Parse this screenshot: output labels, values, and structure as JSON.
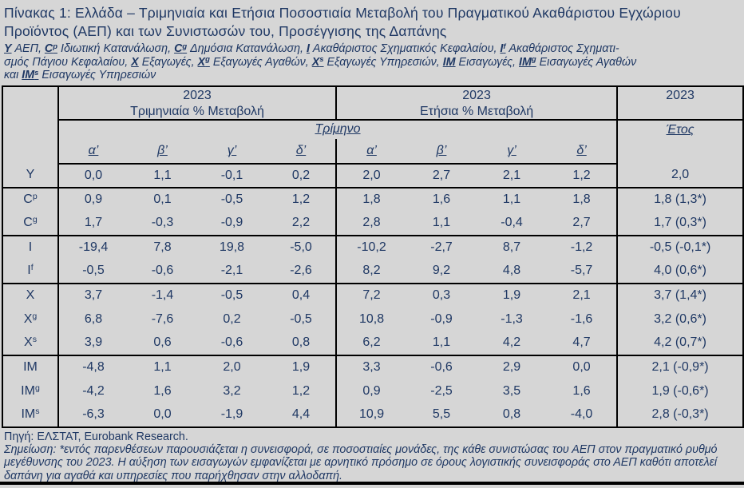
{
  "colors": {
    "text": "#1F3864",
    "background": "#D6D6D6",
    "border": "#000000"
  },
  "title_lines": [
    "Πίνακας 1: Ελλάδα – Τριμηνιαία και Ετήσια Ποσοστιαία Μεταβολή του Πραγματικού Ακαθάριστου Εγχώριου",
    "Προϊόντος (ΑΕΠ) και των Συνιστωσών του, Προσέγγισης της Δαπάνης"
  ],
  "legend": {
    "lines": [
      [
        {
          "sym": "Y",
          "sup": "",
          "post": " ΑΕΠ, "
        },
        {
          "sym": "C",
          "sup": "p",
          "post": " Ιδιωτική Κατανάλωση, "
        },
        {
          "sym": "C",
          "sup": "g",
          "post": " Δημόσια Κατανάλωση, "
        },
        {
          "sym": "I",
          "sup": "",
          "post": " Ακαθάριστος Σχηματικός Κεφαλαίου, "
        },
        {
          "sym": "I",
          "sup": "f",
          "post": " Ακαθάριστος Σχηματι-"
        }
      ],
      [
        {
          "pre": "σμός Πάγιου Κεφαλαίου, ",
          "sym": "X",
          "sup": "",
          "post": " Εξαγωγές, "
        },
        {
          "sym": "X",
          "sup": "g",
          "post": " Εξαγωγές Αγαθών, "
        },
        {
          "sym": "X",
          "sup": "s",
          "post": " Εξαγωγές Υπηρεσιών, "
        },
        {
          "sym": "IM",
          "sup": "",
          "post": " Εισαγωγές, "
        },
        {
          "sym": "IM",
          "sup": "g",
          "post": " Εισαγωγές Αγαθών"
        }
      ],
      [
        {
          "pre": "και ",
          "sym": "IM",
          "sup": "s",
          "post": " Εισαγωγές Υπηρεσιών"
        }
      ]
    ]
  },
  "table": {
    "year_headers": [
      "2023",
      "2023",
      "2023"
    ],
    "quarterly_title": "Τριμηνιαία % Μεταβολή",
    "annual_title": "Ετήσια % Μεταβολή",
    "quarter_span_label": "Τρίμηνο",
    "year_span_label": "Έτος",
    "quarter_cols": [
      "α’",
      "β’",
      "γ’",
      "δ’"
    ],
    "rows": [
      {
        "label": "Y",
        "sup": "",
        "group_start": false,
        "quarterly": [
          "0,0",
          "1,1",
          "-0,1",
          "0,2"
        ],
        "annual": [
          "2,0",
          "2,7",
          "2,1",
          "1,2"
        ],
        "year": "2,0"
      },
      {
        "label": "C",
        "sup": "p",
        "group_start": true,
        "quarterly": [
          "0,9",
          "0,1",
          "-0,5",
          "1,2"
        ],
        "annual": [
          "1,8",
          "1,6",
          "1,1",
          "1,8"
        ],
        "year": "1,8 (1,3*)"
      },
      {
        "label": "C",
        "sup": "g",
        "group_start": false,
        "quarterly": [
          "1,7",
          "-0,3",
          "-0,9",
          "2,2"
        ],
        "annual": [
          "2,8",
          "1,1",
          "-0,4",
          "2,7"
        ],
        "year": "1,7 (0,3*)"
      },
      {
        "label": "I",
        "sup": "",
        "group_start": true,
        "quarterly": [
          "-19,4",
          "7,8",
          "19,8",
          "-5,0"
        ],
        "annual": [
          "-10,2",
          "-2,7",
          "8,7",
          "-1,2"
        ],
        "year": "-0,5 (-0,1*)"
      },
      {
        "label": "I",
        "sup": "f",
        "group_start": false,
        "quarterly": [
          "-0,5",
          "-0,6",
          "-2,1",
          "-2,6"
        ],
        "annual": [
          "8,2",
          "9,2",
          "4,8",
          "-5,7"
        ],
        "year": "4,0 (0,6*)"
      },
      {
        "label": "X",
        "sup": "",
        "group_start": true,
        "quarterly": [
          "3,7",
          "-1,4",
          "-0,5",
          "0,4"
        ],
        "annual": [
          "7,2",
          "0,3",
          "1,9",
          "2,1"
        ],
        "year": "3,7 (1,4*)"
      },
      {
        "label": "X",
        "sup": "g",
        "group_start": false,
        "quarterly": [
          "6,8",
          "-7,6",
          "0,2",
          "-0,5"
        ],
        "annual": [
          "10,8",
          "-0,9",
          "-1,3",
          "-1,6"
        ],
        "year": "3,2 (0,6*)"
      },
      {
        "label": "X",
        "sup": "s",
        "group_start": false,
        "quarterly": [
          "3,9",
          "0,6",
          "-0,6",
          "0,8"
        ],
        "annual": [
          "6,2",
          "1,1",
          "4,2",
          "4,7"
        ],
        "year": "4,2 (0,7*)"
      },
      {
        "label": "IM",
        "sup": "",
        "group_start": true,
        "quarterly": [
          "-4,8",
          "1,1",
          "2,0",
          "1,9"
        ],
        "annual": [
          "3,3",
          "-0,6",
          "2,9",
          "0,0"
        ],
        "year": "2,1 (-0,9*)"
      },
      {
        "label": "IM",
        "sup": "g",
        "group_start": false,
        "quarterly": [
          "-4,2",
          "1,6",
          "3,2",
          "1,2"
        ],
        "annual": [
          "0,9",
          "-2,5",
          "3,5",
          "1,6"
        ],
        "year": "1,9 (-0,6*)"
      },
      {
        "label": "IM",
        "sup": "s",
        "group_start": false,
        "quarterly": [
          "-6,3",
          "0,0",
          "-1,9",
          "4,4"
        ],
        "annual": [
          "10,9",
          "5,5",
          "0,8",
          "-4,0"
        ],
        "year": "2,8 (-0,3*)"
      }
    ]
  },
  "footer": {
    "source": "Πηγή: ΕΛΣΤΑΤ, Eurobank Research.",
    "note": "Σημείωση: *εντός παρενθέσεων παρουσιάζεται η συνεισφορά, σε ποσοστιαίες μονάδες, της κάθε συνιστώσας του ΑΕΠ στον πραγματικό ρυθμό μεγέθυνσης του 2023. Η αύξηση των εισαγωγών εμφανίζεται με αρνητικό πρόσημο σε όρους λογιστικής συνεισφοράς στο ΑΕΠ καθότι αποτελεί δαπάνη για αγαθά και υπηρεσίες που παρήχθησαν στην αλλοδαπή."
  }
}
